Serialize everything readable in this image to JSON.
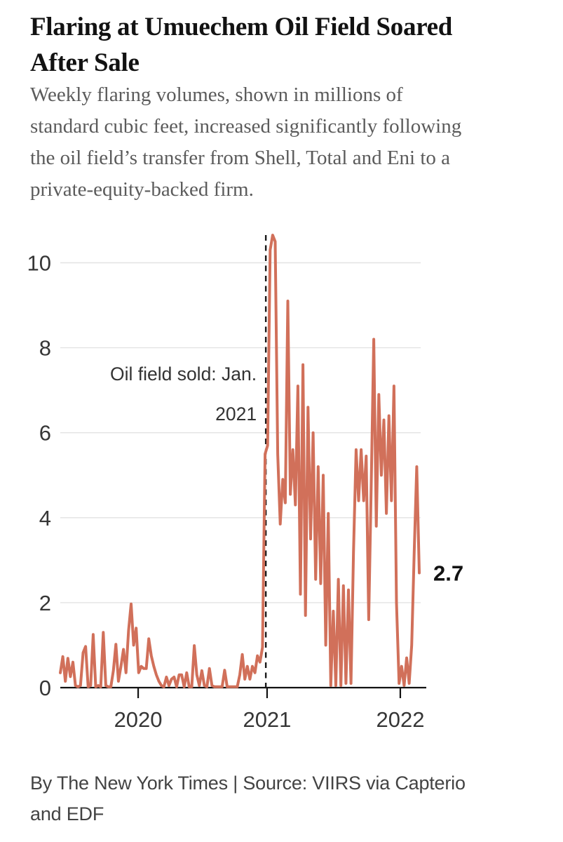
{
  "header": {
    "title_lines": [
      "Flaring at Umuechem Oil Field Soared",
      "After Sale"
    ],
    "subtitle_lines": [
      "Weekly flaring volumes, shown in millions of",
      "standard cubic feet, increased significantly following",
      "the oil field’s transfer from Shell, Total and Eni to a",
      "private-equity-backed firm."
    ]
  },
  "footer": {
    "lines": [
      "By The New York Times | Source: VIIRS via Capterio",
      "and EDF"
    ]
  },
  "colors": {
    "line": "#d1705a",
    "gridline": "#e3e3e3",
    "axis": "#121212",
    "tick_label": "#363636",
    "annotation": "#333333",
    "end_label": "#121212"
  },
  "chart_data": {
    "type": "line",
    "title": "Flaring at Umuechem Oil Field Soared After Sale",
    "units": "millions of standard cubic feet per week",
    "grid": true,
    "legend_position": "none",
    "ylim": [
      0,
      10.65
    ],
    "y_ticks": [
      0,
      2,
      4,
      6,
      8,
      10
    ],
    "x_ticks": [
      {
        "label": "2020",
        "week": 30.8
      },
      {
        "label": "2021",
        "week": 81.8
      },
      {
        "label": "2022",
        "week": 134.5
      }
    ],
    "annotation": {
      "lines": [
        "Oil field sold: Jan.",
        "2021"
      ],
      "week": 81.3
    },
    "end_label": "2.7",
    "series": [
      {
        "name": "Weekly flaring volume",
        "values": [
          0.35,
          0.73,
          0.15,
          0.69,
          0.26,
          0.6,
          0.05,
          0.02,
          0.05,
          0.82,
          0.97,
          0.02,
          0.05,
          1.25,
          0.02,
          0.05,
          0.02,
          1.3,
          0.05,
          0.02,
          0.02,
          0.4,
          1.02,
          0.15,
          0.5,
          0.9,
          0.35,
          1.35,
          1.97,
          1.0,
          1.4,
          0.35,
          0.5,
          0.45,
          0.45,
          1.15,
          0.75,
          0.5,
          0.3,
          0.15,
          0.05,
          0.02,
          0.25,
          0.05,
          0.2,
          0.25,
          0.02,
          0.3,
          0.3,
          0.02,
          0.35,
          0.02,
          0.02,
          0.99,
          0.3,
          0.05,
          0.4,
          0.05,
          0.02,
          0.45,
          0.05,
          0.02,
          0.02,
          0.02,
          0.02,
          0.41,
          0.02,
          0.02,
          0.02,
          0.02,
          0.02,
          0.3,
          0.78,
          0.2,
          0.5,
          0.2,
          0.5,
          0.35,
          0.75,
          0.6,
          0.95,
          5.5,
          5.7,
          10.3,
          10.65,
          10.5,
          5.5,
          3.85,
          4.9,
          4.35,
          9.1,
          4.55,
          5.6,
          4.3,
          7.1,
          2.2,
          7.6,
          1.7,
          6.6,
          3.5,
          6.0,
          2.55,
          5.2,
          2.45,
          5.0,
          1.0,
          4.1,
          0.05,
          1.8,
          0.05,
          2.55,
          0.05,
          2.4,
          0.1,
          2.3,
          0.1,
          3.2,
          5.6,
          4.4,
          5.6,
          4.4,
          5.45,
          1.6,
          4.8,
          8.2,
          3.8,
          6.9,
          5.0,
          6.3,
          4.1,
          6.4,
          4.4,
          7.1,
          2.0,
          0.1,
          0.5,
          0.05,
          0.7,
          0.1,
          1.0,
          3.2,
          5.2,
          2.7
        ]
      }
    ]
  }
}
